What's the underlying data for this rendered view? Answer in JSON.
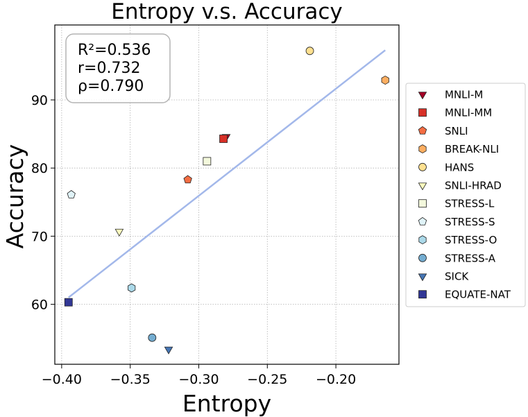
{
  "chart_data": {
    "type": "scatter",
    "title": "Entropy  v.s.  Accuracy",
    "xlabel": "Entropy",
    "ylabel": "Accuracy",
    "xlim": [
      -0.405,
      -0.154
    ],
    "ylim": [
      51.2,
      101.0
    ],
    "xticks": [
      -0.4,
      -0.35,
      -0.3,
      -0.25,
      -0.2
    ],
    "xtick_labels": [
      "−0.40",
      "−0.35",
      "−0.30",
      "−0.25",
      "−0.20"
    ],
    "yticks": [
      60,
      70,
      80,
      90
    ],
    "ytick_labels": [
      "60",
      "70",
      "80",
      "90"
    ],
    "grid": true,
    "legend_position": "right, outside plot",
    "stats": [
      "R²=0.536",
      "r=0.732",
      "ρ=0.790"
    ],
    "fit_line": {
      "x": [
        -0.395,
        -0.164
      ],
      "y": [
        61.0,
        97.3
      ],
      "color": "#a3b8ea"
    },
    "series": [
      {
        "name": "MNLI-M",
        "marker": "triangle-down",
        "color": "#a50026",
        "points": [
          {
            "x": -0.28,
            "y": 84.6
          }
        ]
      },
      {
        "name": "MNLI-MM",
        "marker": "square",
        "color": "#d73027",
        "points": [
          {
            "x": -0.282,
            "y": 84.3
          }
        ]
      },
      {
        "name": "SNLI",
        "marker": "pentagon",
        "color": "#f46d43",
        "points": [
          {
            "x": -0.308,
            "y": 78.3
          }
        ]
      },
      {
        "name": "BREAK-NLI",
        "marker": "hexagon",
        "color": "#fdae61",
        "points": [
          {
            "x": -0.164,
            "y": 92.9
          }
        ]
      },
      {
        "name": "HANS",
        "marker": "circle",
        "color": "#fee090",
        "points": [
          {
            "x": -0.219,
            "y": 97.2
          }
        ]
      },
      {
        "name": "SNLI-HRAD",
        "marker": "triangle-down",
        "color": "#ffffbf",
        "points": [
          {
            "x": -0.358,
            "y": 70.7
          }
        ]
      },
      {
        "name": "STRESS-L",
        "marker": "square",
        "color": "#f3f8dc",
        "points": [
          {
            "x": -0.294,
            "y": 81.0
          }
        ]
      },
      {
        "name": "STRESS-S",
        "marker": "pentagon",
        "color": "#e0f3f8",
        "points": [
          {
            "x": -0.393,
            "y": 76.1
          }
        ]
      },
      {
        "name": "STRESS-O",
        "marker": "hexagon",
        "color": "#abd9e9",
        "points": [
          {
            "x": -0.349,
            "y": 62.4
          }
        ]
      },
      {
        "name": "STRESS-A",
        "marker": "circle",
        "color": "#74add1",
        "points": [
          {
            "x": -0.334,
            "y": 55.1
          }
        ]
      },
      {
        "name": "SICK",
        "marker": "triangle-down",
        "color": "#4575b4",
        "points": [
          {
            "x": -0.322,
            "y": 53.4
          }
        ]
      },
      {
        "name": "EQUATE-NAT",
        "marker": "square",
        "color": "#313695",
        "points": [
          {
            "x": -0.395,
            "y": 60.3
          }
        ]
      }
    ]
  }
}
